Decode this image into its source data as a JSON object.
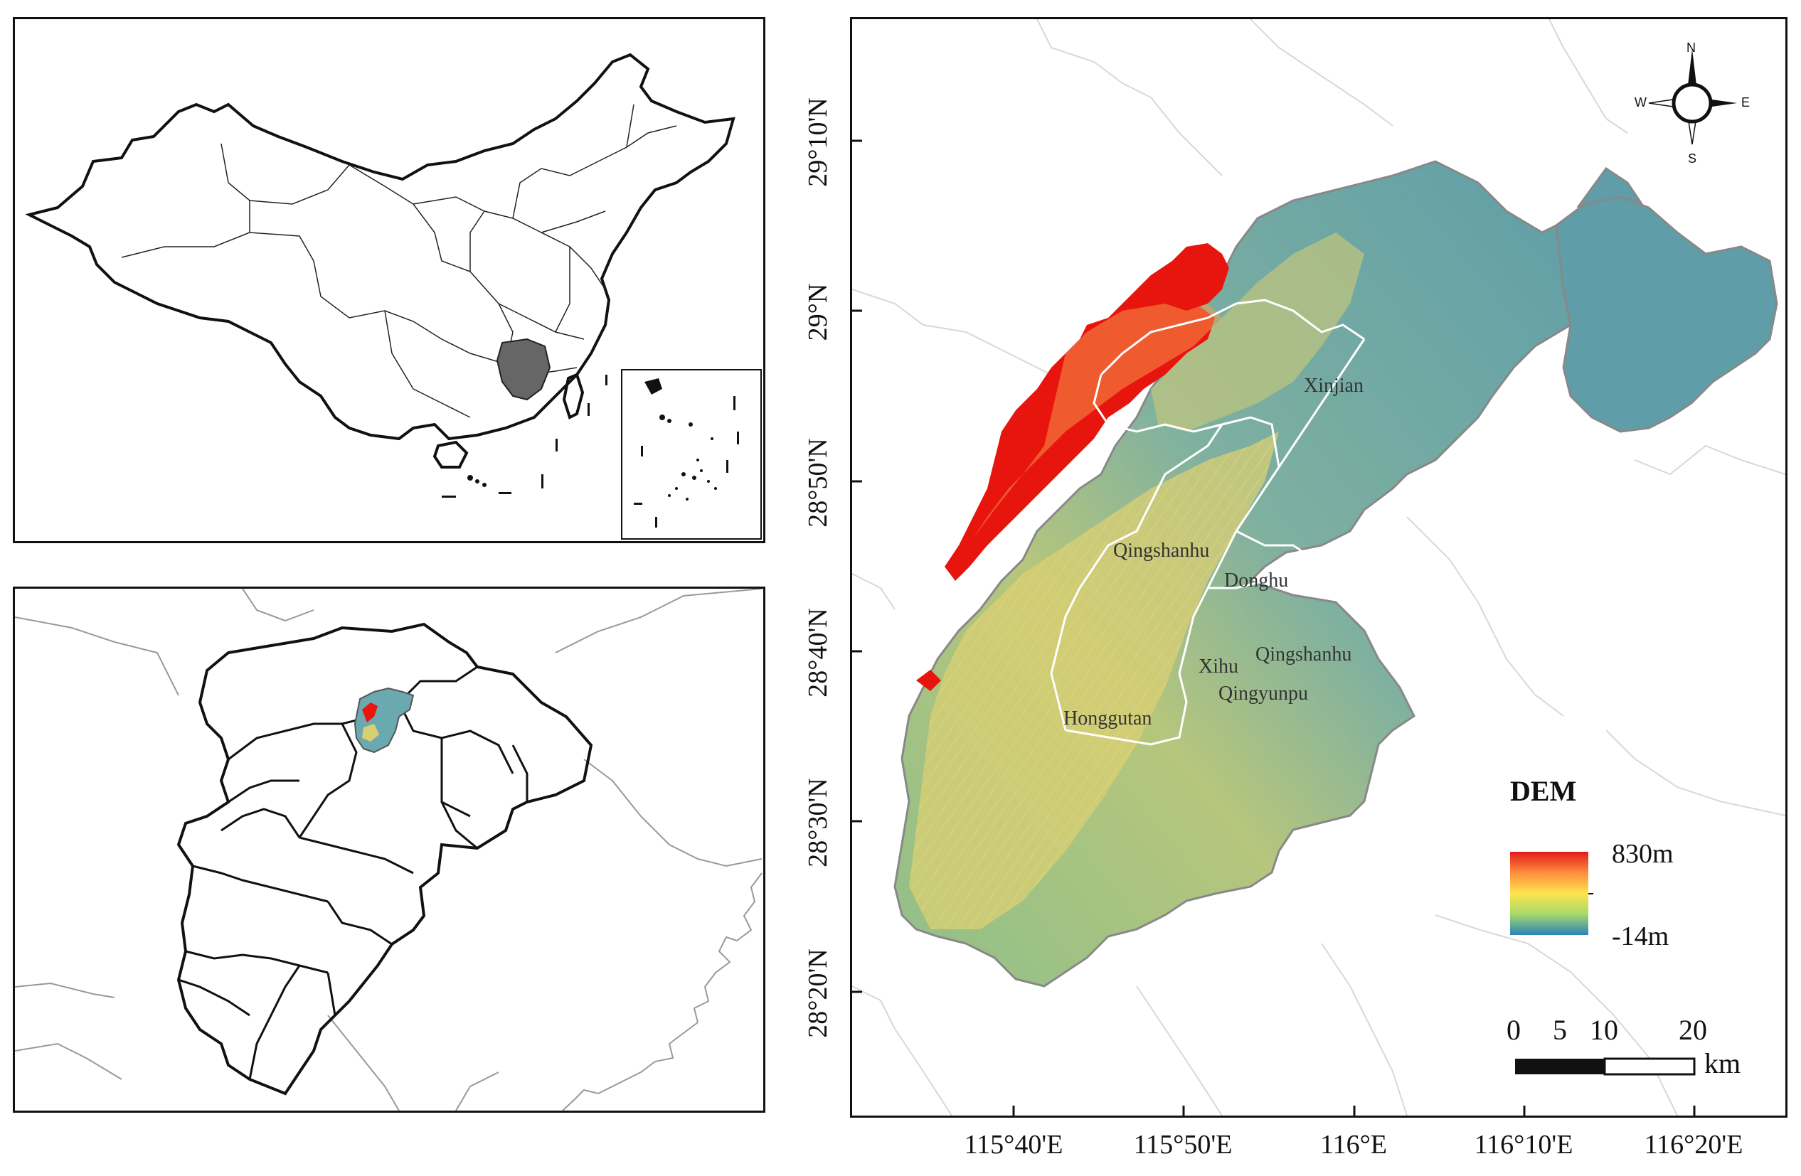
{
  "compass": {
    "n": "N",
    "s": "S",
    "e": "E",
    "w": "W"
  },
  "districts": {
    "xinjian": "Xinjian",
    "qingshanhu_1": "Qingshanhu",
    "donghu": "Donghu",
    "xihu": "Xihu",
    "qingshanhu_2": "Qingshanhu",
    "qingyunpu": "Qingyunpu",
    "honggutan": "Honggutan"
  },
  "legend": {
    "title": "DEM",
    "max_label": "830m",
    "min_label": "-14m",
    "colors": [
      "#e31a1c",
      "#fd8d3c",
      "#fee44c",
      "#a6d96a",
      "#66aabb",
      "#2b83ba"
    ]
  },
  "scale_bar": {
    "ticks": [
      "0",
      "5",
      "10",
      "20"
    ],
    "unit": "km"
  },
  "axes": {
    "lat_labels": [
      "29°10'N",
      "29°N",
      "28°50'N",
      "28°40'N",
      "28°30'N",
      "28°20'N"
    ],
    "lon_labels": [
      "115°40'E",
      "115°50'E",
      "116°E",
      "116°10'E",
      "116°20'E"
    ]
  },
  "colors": {
    "dem_base": "#5f9ea8",
    "dem_high": "#e8150f",
    "dem_mid": "#f0e070",
    "highlight_province": "#666666"
  }
}
